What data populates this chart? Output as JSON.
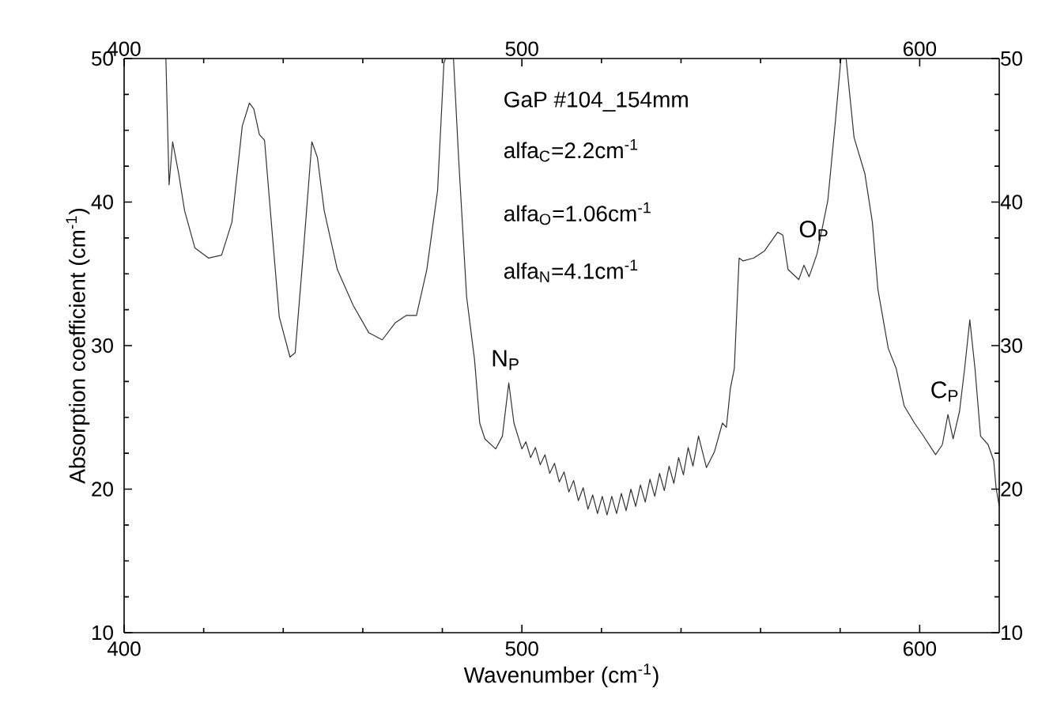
{
  "chart_data": {
    "type": "line",
    "xlabel": "Wavenumber (cm$^{-1}$)",
    "ylabel": "Absorption coefficient (cm$^{-1}$)",
    "xlim": [
      400,
      620
    ],
    "xticks": [
      400,
      500,
      600
    ],
    "x2lim": [
      400,
      620
    ],
    "x2ticks": [
      400,
      500,
      600
    ],
    "ylim": [
      10,
      50
    ],
    "yticks": [
      10,
      20,
      30,
      40,
      50
    ],
    "y2lim": [
      10,
      50
    ],
    "y2ticks": [
      10,
      20,
      30,
      40,
      50
    ],
    "marker": "none",
    "line_style": "solid",
    "annotations": [
      "GaP #104_154mm",
      "alfa$_{C}$=2.2cm$^{-1}$",
      "alfa$_{O}$=1.06cm$^{-1}$",
      "alfa$_{N}$=4.1cm$^{-1}$",
      {
        "text": "N$_{P}$",
        "x": 496.7,
        "y": 27.4
      },
      {
        "text": "O$_{P}$",
        "x": 574.2,
        "y": 36.4
      },
      {
        "text": "C$_{P}$",
        "x": 607.1,
        "y": 25.2
      }
    ],
    "series": [
      {
        "color": "#333333",
        "x": [
          410.5,
          411.3,
          412.2,
          413.7,
          415.2,
          417.8,
          421.2,
          424.5,
          427.1,
          429.7,
          431.5,
          432.6,
          434,
          435.3,
          437,
          439,
          441.7,
          443,
          445,
          447.2,
          448.6,
          450.3,
          453.6,
          457.6,
          461.5,
          464.9,
          468.2,
          470.9,
          473.5,
          476.1,
          478.8,
          480.4,
          480.8,
          482.8,
          484.1,
          486.1,
          488.1,
          489.4,
          490.7,
          493.4,
          495.1,
          496.7,
          498,
          500,
          501,
          502.2,
          503.4,
          504.6,
          505.8,
          507,
          508.2,
          509.4,
          510.6,
          511.8,
          513,
          514.2,
          515.4,
          516.6,
          517.8,
          519,
          520.2,
          521.4,
          522.6,
          523.8,
          525,
          526.2,
          527.4,
          528.6,
          529.8,
          531,
          532.2,
          533.4,
          534.6,
          535.8,
          537,
          538.2,
          539.4,
          540.6,
          541.8,
          543,
          544.4,
          546.4,
          548.4,
          550.4,
          551.4,
          552.4,
          553.4,
          554.6,
          555.6,
          558.3,
          561,
          564.3,
          565.6,
          566.9,
          569.6,
          570.9,
          572.2,
          574.2,
          576.9,
          578.8,
          580.2,
          581.5,
          583.5,
          586.2,
          588.1,
          589.5,
          592.1,
          594.1,
          596.1,
          598.7,
          600.7,
          604,
          605.7,
          607.1,
          608.4,
          610,
          611.3,
          612.6,
          613.9,
          615.3,
          617.2,
          618.6,
          619.2,
          620
        ],
        "values": [
          50,
          41.2,
          44.2,
          42,
          39.4,
          36.8,
          36.1,
          36.3,
          38.6,
          45.3,
          46.9,
          46.5,
          44.7,
          44.3,
          38.6,
          32,
          29.2,
          29.5,
          36.3,
          44.2,
          43.1,
          39.4,
          35.3,
          32.8,
          30.9,
          30.4,
          31.6,
          32.1,
          32.1,
          35.3,
          40.8,
          49.7,
          50,
          50,
          43,
          33.4,
          29,
          24.6,
          23.5,
          22.8,
          23.7,
          27.4,
          24.6,
          22.8,
          23.3,
          22.2,
          22.9,
          21.7,
          22.4,
          21.1,
          21.8,
          20.5,
          21.2,
          19.8,
          20.6,
          19.2,
          20.1,
          18.6,
          19.6,
          18.3,
          19.5,
          18.2,
          19.5,
          18.3,
          19.7,
          18.5,
          20,
          18.8,
          20.3,
          19.1,
          20.7,
          19.5,
          21.1,
          19.9,
          21.6,
          20.4,
          22.2,
          21,
          22.9,
          21.6,
          23.7,
          21.5,
          22.6,
          24.6,
          24.3,
          27,
          28.4,
          36.1,
          35.9,
          36.1,
          36.6,
          37.9,
          37.7,
          35.3,
          34.6,
          35.6,
          34.8,
          36.4,
          40.1,
          45.6,
          50,
          50,
          44.5,
          42,
          38.6,
          33.9,
          29.8,
          28.4,
          25.8,
          24.6,
          23.8,
          22.4,
          23.1,
          25.2,
          23.5,
          25.4,
          28.4,
          31.8,
          28.4,
          23.7,
          23.1,
          22,
          20.1,
          18.8
        ]
      }
    ]
  }
}
